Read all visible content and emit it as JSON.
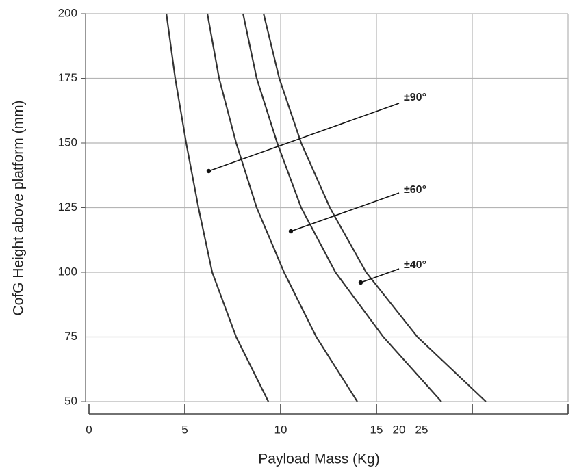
{
  "chart_data": {
    "type": "line",
    "y_label": "CofG Height above platform (mm)",
    "x_label": "Payload Mass (Kg)",
    "xlim": [
      0,
      25
    ],
    "xticks": [
      0,
      5,
      10,
      15,
      20,
      25
    ],
    "ylim": [
      50,
      200
    ],
    "yticks": [
      50,
      75,
      100,
      125,
      150,
      175,
      200
    ],
    "grid": true,
    "series": [
      {
        "color": "#333333",
        "x": [
          4.04,
          4.5,
          5.07,
          5.71,
          6.43,
          7.68,
          9.36
        ],
        "values": [
          200,
          175,
          150,
          125,
          100,
          75,
          50
        ]
      },
      {
        "color": "#333333",
        "x": [
          6.18,
          6.79,
          7.68,
          8.75,
          10.18,
          11.86,
          14.0
        ],
        "values": [
          200,
          175,
          150,
          125,
          100,
          75,
          50
        ]
      },
      {
        "color": "#333333",
        "x": [
          8.04,
          8.75,
          9.82,
          11.07,
          12.86,
          15.36,
          18.39
        ],
        "values": [
          200,
          175,
          150,
          125,
          100,
          75,
          50
        ]
      },
      {
        "color": "#333333",
        "x": [
          9.11,
          9.93,
          11.07,
          12.57,
          14.46,
          17.14,
          20.71
        ],
        "values": [
          200,
          175,
          150,
          125,
          100,
          75,
          50
        ]
      }
    ],
    "annotations": [
      "±90°",
      "±60°",
      "±40°"
    ]
  }
}
